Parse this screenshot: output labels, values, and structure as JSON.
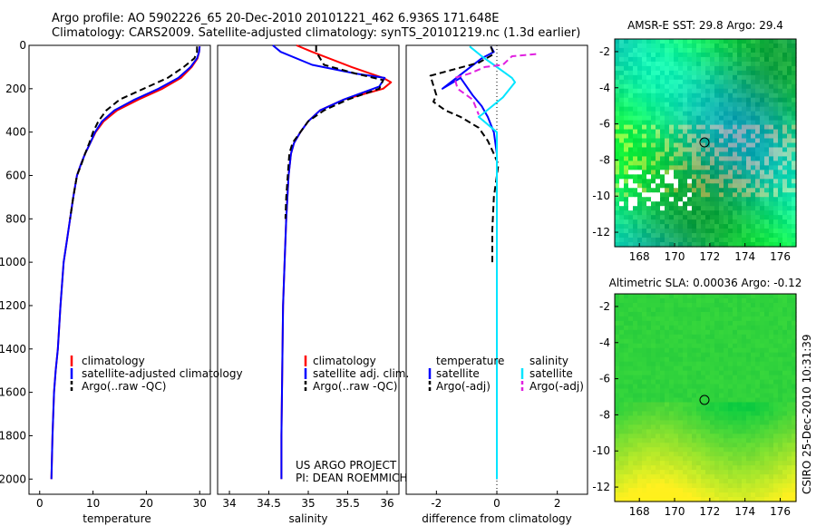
{
  "header": {
    "line1": "Argo profile: AO 5902226_65 20-Dec-2010 20101221_462 6.936S 171.648E",
    "line2": "Climatology: CARS2009. Satellite-adjusted climatology: synTS_20101219.nc (1.3d earlier)"
  },
  "footer": {
    "project": "US ARGO PROJECT",
    "pi": "PI: DEAN ROEMMICH",
    "stamp": "CSIRO 25-Dec-2010 10:31:39"
  },
  "colors": {
    "climatology": "#ff0000",
    "satellite": "#0000ff",
    "argo": "#000000",
    "sat_salinity": "#00e5ff",
    "argo_adj_salinity": "#e020e0"
  },
  "chart_data": [
    {
      "type": "line",
      "xlabel": "temperature",
      "xlim": [
        -2,
        32
      ],
      "ylim": [
        0,
        2070
      ],
      "y_reversed": true,
      "xticks": [
        "0",
        "10",
        "20",
        "30"
      ],
      "xtick_values": [
        0,
        10,
        20,
        30
      ],
      "yticks": [
        "0",
        "200",
        "400",
        "600",
        "800",
        "1000",
        "1200",
        "1400",
        "1600",
        "1800",
        "2000"
      ],
      "ytick_values": [
        0,
        200,
        400,
        600,
        800,
        1000,
        1200,
        1400,
        1600,
        1800,
        2000
      ],
      "legend": [
        "climatology",
        "satellite-adjusted climatology",
        "Argo(..raw -QC)"
      ],
      "series": [
        {
          "name": "climatology",
          "color": "#ff0000",
          "dash": false,
          "x": [
            30,
            29.9,
            29.6,
            28.5,
            26.5,
            23.0,
            18.5,
            14.5,
            12.0,
            10.5,
            9.5,
            8.5,
            7.7,
            7.0,
            6.3,
            5.7,
            5.1,
            4.5,
            3.9,
            3.4,
            3.0,
            2.7,
            2.4,
            2.3,
            2.2
          ],
          "y": [
            5,
            30,
            60,
            100,
            150,
            200,
            250,
            300,
            350,
            400,
            450,
            500,
            550,
            600,
            700,
            800,
            900,
            1000,
            1200,
            1400,
            1500,
            1600,
            1800,
            1900,
            2000
          ]
        },
        {
          "name": "satellite-adjusted climatology",
          "color": "#0000ff",
          "dash": false,
          "x": [
            30,
            29.9,
            29.5,
            28.3,
            26.0,
            22.3,
            17.8,
            14.0,
            11.7,
            10.4,
            9.5,
            8.5,
            7.7,
            7.0,
            6.3,
            5.7,
            5.1,
            4.5,
            3.9,
            3.4,
            3.0,
            2.7,
            2.4,
            2.3,
            2.2
          ],
          "y": [
            5,
            30,
            60,
            100,
            150,
            200,
            250,
            300,
            350,
            400,
            450,
            500,
            550,
            600,
            700,
            800,
            900,
            1000,
            1200,
            1400,
            1500,
            1600,
            1800,
            1900,
            2000
          ]
        },
        {
          "name": "Argo(..raw -QC)",
          "color": "#000000",
          "dash": true,
          "x": [
            29.5,
            29.5,
            29.0,
            27.0,
            24.0,
            19.5,
            15.0,
            12.5,
            11.0,
            10.0,
            9.3,
            8.5,
            7.8,
            7.0,
            6.3,
            5.7
          ],
          "y": [
            5,
            30,
            60,
            100,
            150,
            200,
            250,
            300,
            350,
            400,
            450,
            500,
            550,
            600,
            700,
            800
          ]
        }
      ]
    },
    {
      "type": "line",
      "xlabel": "salinity",
      "xlim": [
        33.85,
        36.15
      ],
      "ylim": [
        0,
        2070
      ],
      "y_reversed": true,
      "xticks": [
        "34",
        "34.5",
        "35",
        "35.5",
        "36"
      ],
      "xtick_values": [
        34,
        34.5,
        35,
        35.5,
        36
      ],
      "legend": [
        "climatology",
        "satellite adj. clim.",
        "Argo(..raw -QC)"
      ],
      "series": [
        {
          "name": "climatology",
          "color": "#ff0000",
          "dash": false,
          "x": [
            34.85,
            35.05,
            35.55,
            35.95,
            36.05,
            35.95,
            35.45,
            35.15,
            35.0,
            34.9,
            34.82,
            34.78,
            34.75,
            34.72,
            34.7,
            34.68,
            34.67,
            34.66,
            34.66
          ],
          "y": [
            0,
            30,
            100,
            150,
            170,
            200,
            250,
            300,
            350,
            400,
            450,
            500,
            600,
            800,
            1000,
            1200,
            1500,
            1800,
            2000
          ]
        },
        {
          "name": "satellite adj. clim.",
          "color": "#0000ff",
          "dash": false,
          "x": [
            34.55,
            34.65,
            35.05,
            35.6,
            35.97,
            35.9,
            35.45,
            35.15,
            35.0,
            34.9,
            34.82,
            34.78,
            34.75,
            34.72,
            34.7,
            34.68,
            34.67,
            34.66,
            34.66
          ],
          "y": [
            0,
            30,
            90,
            130,
            150,
            190,
            250,
            300,
            350,
            400,
            450,
            500,
            600,
            800,
            1000,
            1200,
            1500,
            1800,
            2000
          ]
        },
        {
          "name": "Argo(..raw -QC)",
          "color": "#000000",
          "dash": true,
          "x": [
            35.1,
            35.1,
            35.2,
            35.6,
            35.95,
            35.9,
            35.5,
            35.2,
            35.0,
            34.9,
            34.8,
            34.76,
            34.74,
            34.72,
            34.71
          ],
          "y": [
            0,
            30,
            90,
            130,
            160,
            200,
            250,
            300,
            350,
            400,
            450,
            500,
            600,
            700,
            800
          ]
        }
      ]
    },
    {
      "type": "line",
      "xlabel": "difference from climatology",
      "xlim": [
        -3,
        3
      ],
      "ylim": [
        0,
        2070
      ],
      "y_reversed": true,
      "xticks": [
        "-2",
        "0",
        "2"
      ],
      "xtick_values": [
        -2,
        0,
        2
      ],
      "legend_titles": [
        "temperature",
        "salinity"
      ],
      "legend": [
        "satellite",
        "Argo(-adj)",
        "satellite",
        "Argo(-adj)"
      ],
      "series": [
        {
          "name": "temperature satellite",
          "color": "#0000ff",
          "dash": false,
          "x": [
            -0.2,
            -0.1,
            -0.5,
            -1.8,
            -1.2,
            -0.8,
            -0.5,
            -0.3,
            -0.1,
            0,
            0,
            0,
            0,
            0
          ],
          "y": [
            5,
            30,
            60,
            200,
            150,
            230,
            280,
            330,
            400,
            500,
            800,
            1200,
            1600,
            2000
          ]
        },
        {
          "name": "temperature Argo(-adj)",
          "color": "#000000",
          "dash": true,
          "x": [
            -0.2,
            -0.1,
            -0.6,
            -2.2,
            -2.0,
            -2.1,
            -1.7,
            -1.2,
            -0.6,
            -0.3,
            -0.1,
            0.05,
            -0.1,
            -0.15,
            -0.15
          ],
          "y": [
            5,
            40,
            80,
            140,
            230,
            260,
            300,
            330,
            380,
            440,
            500,
            550,
            700,
            850,
            1000
          ]
        },
        {
          "name": "salinity satellite",
          "color": "#00e5ff",
          "dash": false,
          "x": [
            -0.9,
            -0.5,
            -0.1,
            0.3,
            0.5,
            0.6,
            0.2,
            -0.5,
            -0.6,
            0,
            0,
            0,
            0,
            0
          ],
          "y": [
            5,
            50,
            90,
            130,
            150,
            170,
            240,
            320,
            330,
            400,
            600,
            1000,
            1500,
            2000
          ]
        },
        {
          "name": "salinity Argo(-adj)",
          "color": "#e020e0",
          "dash": true,
          "x": [
            1.3,
            0.5,
            0.2,
            -0.4,
            -0.9,
            -1.4,
            -1.3,
            -0.8,
            -0.6
          ],
          "y": [
            40,
            50,
            90,
            100,
            130,
            150,
            200,
            250,
            320
          ]
        }
      ]
    },
    {
      "type": "heatmap",
      "title": "AMSR-E SST: 29.8 Argo: 29.4",
      "xlim": [
        166.6,
        176.9
      ],
      "ylim": [
        -12.8,
        -1.3
      ],
      "xticks": [
        "168",
        "170",
        "172",
        "174",
        "176"
      ],
      "xtick_values": [
        168,
        170,
        172,
        174,
        176
      ],
      "yticks": [
        "-2",
        "-4",
        "-6",
        "-8",
        "-10",
        "-12"
      ],
      "ytick_values": [
        -2,
        -4,
        -6,
        -8,
        -10,
        -12
      ],
      "argo_position": {
        "lon": 171.65,
        "lat": -6.94
      }
    },
    {
      "type": "heatmap",
      "title": "Altimetric SLA: 0.00036 Argo: -0.12",
      "xlim": [
        166.6,
        176.9
      ],
      "ylim": [
        -12.8,
        -1.3
      ],
      "xticks": [
        "168",
        "170",
        "172",
        "174",
        "176"
      ],
      "xtick_values": [
        168,
        170,
        172,
        174,
        176
      ],
      "yticks": [
        "-2",
        "-4",
        "-6",
        "-8",
        "-10",
        "-12"
      ],
      "ytick_values": [
        -2,
        -4,
        -6,
        -8,
        -10,
        -12
      ],
      "argo_position": {
        "lon": 171.65,
        "lat": -6.94
      }
    }
  ]
}
